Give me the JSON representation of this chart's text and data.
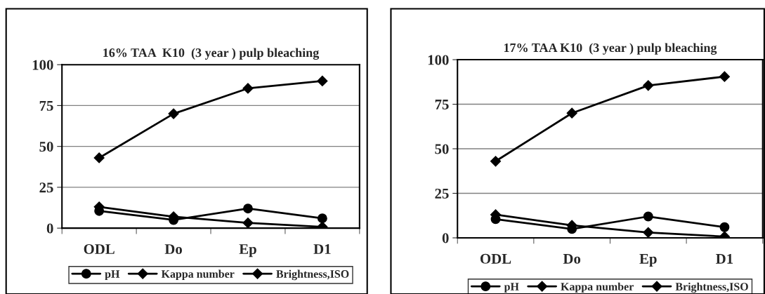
{
  "chart_data": [
    {
      "type": "line",
      "title": "16% TAA  K10  (3 year ) pulp bleaching",
      "categories": [
        "ODL",
        "Do",
        "Ep",
        "D1"
      ],
      "ylim": [
        0,
        100
      ],
      "yticks": [
        0,
        25,
        50,
        75,
        100
      ],
      "grid": "y",
      "legend": "bottom",
      "series": [
        {
          "name": "pH",
          "color": "#000000",
          "marker": "circle",
          "values": [
            10.5,
            5,
            12,
            6
          ]
        },
        {
          "name": "Kappa number",
          "color": "#000000",
          "marker": "diamond",
          "values": [
            13,
            7,
            3.2,
            0.8
          ]
        },
        {
          "name": "Brightness,ISO",
          "color": "#000000",
          "marker": "diamond",
          "values": [
            43,
            70,
            85.5,
            90
          ]
        }
      ]
    },
    {
      "type": "line",
      "title": "17% TAA K10  (3 year ) pulp bleaching",
      "categories": [
        "ODL",
        "Do",
        "Ep",
        "D1"
      ],
      "ylim": [
        0,
        100
      ],
      "yticks": [
        0,
        25,
        50,
        75,
        100
      ],
      "grid": "y",
      "legend": "bottom",
      "series": [
        {
          "name": "pH",
          "color": "#000000",
          "marker": "circle",
          "values": [
            10.5,
            5,
            12,
            6
          ]
        },
        {
          "name": "Kappa number",
          "color": "#000000",
          "marker": "diamond",
          "values": [
            13,
            7,
            3,
            0.7
          ]
        },
        {
          "name": "Brightness,ISO",
          "color": "#000000",
          "marker": "diamond",
          "values": [
            43,
            70,
            85.5,
            90.5
          ]
        }
      ]
    }
  ]
}
